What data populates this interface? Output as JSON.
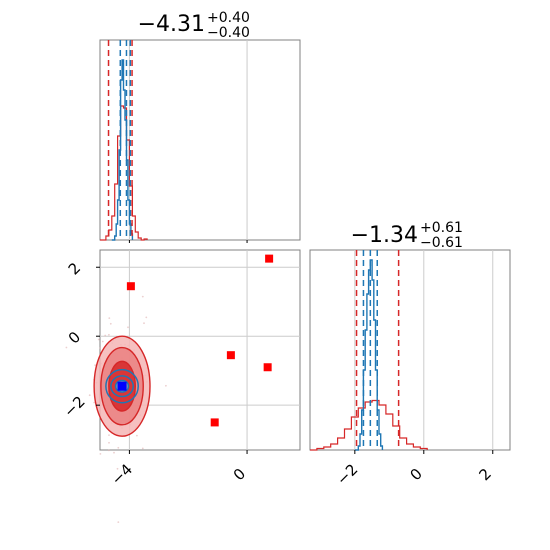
{
  "chart_data": {
    "type": "corner",
    "parameters": [
      {
        "title_main": "−4.31",
        "title_sup": "+0.40",
        "title_sub": "−0.40",
        "median": -4.31,
        "range": [
          -5.0,
          1.8
        ]
      },
      {
        "title_main": "−1.34",
        "title_sup": "+0.61",
        "title_sub": "−0.61",
        "median": -1.34,
        "range": [
          -3.3,
          2.5
        ]
      }
    ],
    "x_ticks_param1": [
      "−4",
      "0"
    ],
    "x_tick_values_param1": [
      -4,
      0
    ],
    "y_ticks_param2": [
      "2",
      "0",
      "−2"
    ],
    "y_tick_values_param2": [
      2,
      0,
      -2
    ],
    "x_ticks_param2": [
      "−2",
      "0",
      "2"
    ],
    "x_tick_values_param2": [
      -2,
      0,
      2
    ],
    "grid": true,
    "colors": {
      "red": "#d62728",
      "blue": "#1f77b4",
      "marker": "#ff0000",
      "true_point": "#0000ff",
      "frame": "#808080"
    },
    "series": {
      "red_quantiles_p1": [
        -4.71,
        -3.91
      ],
      "blue_quantiles_p1": [
        -4.31,
        -4.1,
        -3.97
      ],
      "red_quantiles_p2": [
        -1.95,
        -0.73
      ],
      "blue_quantiles_p2": [
        -1.75,
        -1.55,
        -1.35
      ],
      "red_hist_p1": [
        [
          -5.0,
          0
        ],
        [
          -4.9,
          0
        ],
        [
          -4.8,
          0.02
        ],
        [
          -4.7,
          0.05
        ],
        [
          -4.6,
          0.12
        ],
        [
          -4.5,
          0.28
        ],
        [
          -4.4,
          0.52
        ],
        [
          -4.3,
          0.67
        ],
        [
          -4.2,
          0.66
        ],
        [
          -4.1,
          0.5
        ],
        [
          -4.0,
          0.27
        ],
        [
          -3.9,
          0.12
        ],
        [
          -3.8,
          0.04
        ],
        [
          -3.7,
          0.01
        ],
        [
          -3.6,
          0.0
        ],
        [
          -3.5,
          0.005
        ],
        [
          -3.4,
          0.0
        ]
      ],
      "blue_hist_p1": [
        [
          -4.6,
          0
        ],
        [
          -4.5,
          0.02
        ],
        [
          -4.45,
          0.08
        ],
        [
          -4.4,
          0.2
        ],
        [
          -4.35,
          0.45
        ],
        [
          -4.3,
          0.8
        ],
        [
          -4.25,
          0.9
        ],
        [
          -4.2,
          0.75
        ],
        [
          -4.15,
          0.6
        ],
        [
          -4.1,
          0.4
        ],
        [
          -4.05,
          0.2
        ],
        [
          -4.0,
          0.08
        ],
        [
          -3.95,
          0.03
        ],
        [
          -3.9,
          0
        ]
      ],
      "red_hist_p2": [
        [
          -3.3,
          0
        ],
        [
          -3.1,
          0.01
        ],
        [
          -2.9,
          0.02
        ],
        [
          -2.7,
          0.04
        ],
        [
          -2.5,
          0.08
        ],
        [
          -2.3,
          0.14
        ],
        [
          -2.1,
          0.22
        ],
        [
          -1.9,
          0.28
        ],
        [
          -1.7,
          0.32
        ],
        [
          -1.5,
          0.33
        ],
        [
          -1.3,
          0.3
        ],
        [
          -1.1,
          0.24
        ],
        [
          -0.9,
          0.16
        ],
        [
          -0.7,
          0.08
        ],
        [
          -0.5,
          0.04
        ],
        [
          -0.3,
          0.02
        ],
        [
          -0.1,
          0.01
        ],
        [
          0.1,
          0.005
        ]
      ],
      "blue_hist_p2": [
        [
          -2.0,
          0
        ],
        [
          -1.9,
          0.02
        ],
        [
          -1.85,
          0.08
        ],
        [
          -1.8,
          0.2
        ],
        [
          -1.75,
          0.4
        ],
        [
          -1.7,
          0.6
        ],
        [
          -1.65,
          0.78
        ],
        [
          -1.6,
          0.9
        ],
        [
          -1.55,
          0.95
        ],
        [
          -1.5,
          0.85
        ],
        [
          -1.45,
          0.65
        ],
        [
          -1.4,
          0.4
        ],
        [
          -1.35,
          0.2
        ],
        [
          -1.3,
          0.08
        ],
        [
          -1.25,
          0.02
        ],
        [
          -1.2,
          0
        ]
      ],
      "markers_red": [
        [
          -3.95,
          1.45
        ],
        [
          0.75,
          2.25
        ],
        [
          -0.55,
          -0.55
        ],
        [
          0.7,
          -0.9
        ],
        [
          -1.1,
          -2.5
        ]
      ],
      "marker_blue": [
        -4.25,
        -1.45
      ],
      "contours_red": [
        {
          "cx": -4.25,
          "cy": -1.45,
          "rx": 0.95,
          "ry": 1.45,
          "level": "outer"
        },
        {
          "cx": -4.25,
          "cy": -1.45,
          "rx": 0.72,
          "ry": 1.12,
          "level": "mid"
        },
        {
          "cx": -4.25,
          "cy": -1.45,
          "rx": 0.45,
          "ry": 0.72,
          "level": "inner"
        }
      ],
      "contours_blue": [
        {
          "cx": -4.25,
          "cy": -1.45,
          "rx": 0.55,
          "ry": 0.48
        },
        {
          "cx": -4.25,
          "cy": -1.45,
          "rx": 0.38,
          "ry": 0.3
        },
        {
          "cx": -4.25,
          "cy": -1.45,
          "rx": 0.22,
          "ry": 0.17
        }
      ]
    }
  }
}
